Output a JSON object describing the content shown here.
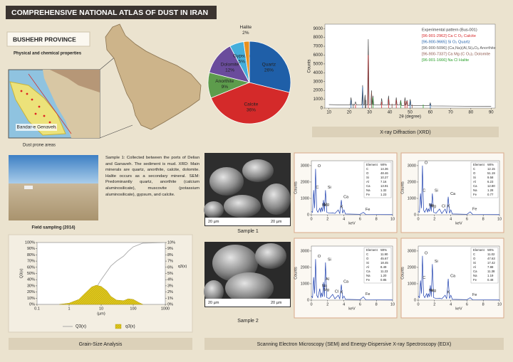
{
  "header": {
    "title": "COMPREHENSIVE NATIONAL ATLAS OF DUST IN IRAN"
  },
  "province": {
    "name": "BUSHEHR PROVINCE",
    "subtitle": "Physical and chemical properties"
  },
  "map": {
    "label": "Bandar-e Genaveh",
    "caption": "Dust prone areas"
  },
  "field": {
    "caption": "Field sampling (2014)"
  },
  "description": "Sample 1: Collected between the ports of Delian and Ganaveh. The sediment is mud. XRD: Main minerals are quartz, anorthite, calcite, dolomite. Halite occurs as a secondary mineral. SEM: Predominantly quartz, anorthite (calcium aluminosilicate), muscovite (potassium aluminosilicate), gypsum, and calcite.",
  "sem": {
    "samples": [
      "Sample 1",
      "Sample 2"
    ],
    "scale_bar": "20 µm"
  },
  "captions": {
    "xrd": "X-ray Diffraction (XRD)",
    "grain": "Grain-Size Analysis",
    "sem": "Scanning Electron Microscopy (SEM) and Energy-Dispersive X-ray Spectroscopy (EDX)"
  },
  "chart_data": [
    {
      "type": "pie",
      "categories": [
        "Quartz",
        "Calcite",
        "Anorthite",
        "Dolomite",
        "Gypsum",
        "Halite"
      ],
      "values": [
        26,
        36,
        9,
        12,
        5,
        2
      ],
      "value_labels": [
        "26%",
        "36%",
        "9%",
        "12%",
        "5%",
        "2%"
      ],
      "colors": [
        "#1f5fa8",
        "#d42a2a",
        "#5d9c4c",
        "#6a4c9c",
        "#45aedb",
        "#e8901e"
      ]
    },
    {
      "type": "line",
      "xlabel": "2θ (degree)",
      "ylabel": "Counts",
      "xlim": [
        8,
        92
      ],
      "ylim": [
        0,
        9500
      ],
      "xticks": [
        10,
        20,
        30,
        40,
        50,
        60,
        70,
        80,
        90
      ],
      "yticks": [
        0,
        1000,
        2000,
        3000,
        4000,
        5000,
        6000,
        7000,
        8000,
        9000
      ],
      "series": [
        {
          "name": "Experimental pattern (Bus-001)",
          "color": "#333333",
          "style": "line",
          "x": [
            10,
            20.5,
            20.9,
            21.3,
            22.6,
            23.1,
            23.6,
            26.2,
            26.6,
            27.0,
            27.4,
            27.8,
            28.2,
            29.0,
            29.4,
            29.8,
            30.6,
            31.0,
            31.4,
            31.7,
            32.1,
            35.6,
            36.0,
            36.4,
            39.0,
            39.4,
            39.8,
            42.8,
            43.2,
            43.6,
            45.0,
            45.4,
            45.8,
            47.1,
            47.5,
            47.9,
            48.5,
            48.9,
            49.7,
            50.1,
            50.5,
            59.6,
            60.0,
            60.4,
            90
          ],
          "values": [
            400,
            350,
            1200,
            350,
            350,
            700,
            350,
            350,
            2600,
            350,
            350,
            1500,
            350,
            350,
            7800,
            350,
            350,
            2000,
            350,
            1400,
            350,
            350,
            1100,
            350,
            350,
            1400,
            350,
            350,
            1200,
            350,
            350,
            900,
            300,
            300,
            1200,
            300,
            900,
            300,
            300,
            1000,
            300,
            300,
            600,
            250,
            200
          ]
        },
        {
          "name": "[96-901-2962] Ca C O₃ Calcite",
          "color": "#d62728",
          "style": "stem",
          "x": [
            23.1,
            29.4,
            36.0,
            39.4,
            43.2,
            47.5,
            48.5
          ],
          "values": [
            400,
            6000,
            700,
            1000,
            900,
            800,
            800
          ]
        },
        {
          "name": "[96-900-9665] Si O₂ Quartz",
          "color": "#1f5fa8",
          "style": "stem",
          "x": [
            20.9,
            26.6,
            50.1,
            60.0
          ],
          "values": [
            900,
            2400,
            800,
            500
          ]
        },
        {
          "name": "[96-900-5096] (Ca,Na)(Al,Si)₄O₈ Anorthite",
          "color": "#555555",
          "style": "stem",
          "x": [
            22.0,
            27.8,
            28.2
          ],
          "values": [
            500,
            1300,
            900
          ]
        },
        {
          "name": "[96-900-7337] Ca Mg (C O₃)₂ Dolomite",
          "color": "#8c564b",
          "style": "stem",
          "x": [
            31.0,
            41.1,
            51.0
          ],
          "values": [
            1800,
            500,
            400
          ]
        },
        {
          "name": "[96-901-1666] Na Cl Halite",
          "color": "#2ca02c",
          "style": "stem",
          "x": [
            31.7,
            45.4,
            56.5
          ],
          "values": [
            1200,
            800,
            400
          ]
        }
      ]
    },
    {
      "type": "line",
      "xscale": "log",
      "xlabel": "(µm)",
      "ylabel": "Q3(x)",
      "y2label": "q3(x)",
      "xlim": [
        0.1,
        1000
      ],
      "ylim": [
        0,
        100
      ],
      "y2lim": [
        0,
        10
      ],
      "xticks": [
        0.1,
        1,
        10,
        100,
        1000
      ],
      "yticks": [
        {
          "value": 0,
          "label": "0%"
        },
        {
          "value": 10,
          "label": "10%"
        },
        {
          "value": 20,
          "label": "20%"
        },
        {
          "value": 30,
          "label": "30%"
        },
        {
          "value": 40,
          "label": "40%"
        },
        {
          "value": 50,
          "label": "50%"
        },
        {
          "value": 60,
          "label": "60%"
        },
        {
          "value": 70,
          "label": "70%"
        },
        {
          "value": 80,
          "label": "80%"
        },
        {
          "value": 90,
          "label": "90%"
        },
        {
          "value": 100,
          "label": "100%"
        }
      ],
      "y2ticks": [
        {
          "value": 0,
          "label": "0%"
        },
        {
          "value": 1,
          "label": "1%"
        },
        {
          "value": 2,
          "label": "2%"
        },
        {
          "value": 3,
          "label": "3%"
        },
        {
          "value": 4,
          "label": "4%"
        },
        {
          "value": 5,
          "label": "5%"
        },
        {
          "value": 6,
          "label": "6%"
        },
        {
          "value": 7,
          "label": "7%"
        },
        {
          "value": 8,
          "label": "8%"
        },
        {
          "value": 9,
          "label": "9%"
        },
        {
          "value": 10,
          "label": "10%"
        }
      ],
      "series": [
        {
          "name": "Q3(x)",
          "color": "#a8a8a8",
          "style": "line",
          "x": [
            0.1,
            0.5,
            1,
            2,
            3,
            5,
            7,
            10,
            20,
            30,
            50,
            70,
            100,
            200,
            1000
          ],
          "values": [
            0,
            0,
            1,
            4,
            8,
            17,
            27,
            40,
            62,
            70,
            78,
            86,
            93,
            99,
            100
          ]
        },
        {
          "name": "q3(x)",
          "color": "#e0c81c",
          "style": "area",
          "axis": "y2",
          "x": [
            0.5,
            1,
            2,
            3,
            5,
            7,
            10,
            15,
            20,
            30,
            50,
            70,
            100,
            150,
            200
          ],
          "values": [
            0,
            0.2,
            0.8,
            1.7,
            2.8,
            3.1,
            2.9,
            2.2,
            1.3,
            0.7,
            0.6,
            0.9,
            0.8,
            0.3,
            0
          ]
        }
      ]
    },
    {
      "type": "line",
      "xlabel": "keV",
      "ylabel": "Counts",
      "color": "#1d3fae",
      "xlim": [
        0,
        10
      ],
      "ylim": [
        0,
        3300
      ],
      "xticks": [
        0,
        2,
        4,
        6,
        8,
        10
      ],
      "yticks": [
        0,
        1000,
        2000,
        3000
      ],
      "x": [
        0,
        0.15,
        0.28,
        0.4,
        0.52,
        0.65,
        0.8,
        1.04,
        1.15,
        1.25,
        1.37,
        1.49,
        1.6,
        1.74,
        1.9,
        2.2,
        2.62,
        2.9,
        3.31,
        3.5,
        3.69,
        3.85,
        4.01,
        4.2,
        6.0,
        6.4,
        6.7,
        10
      ],
      "values": [
        200,
        150,
        1500,
        400,
        2800,
        300,
        150,
        400,
        150,
        450,
        200,
        900,
        200,
        1500,
        150,
        100,
        120,
        80,
        300,
        80,
        900,
        100,
        300,
        50,
        30,
        150,
        20,
        10
      ],
      "peaks": [
        {
          "label": "C",
          "x": 0.28
        },
        {
          "label": "O",
          "x": 0.52
        },
        {
          "label": "Na",
          "x": 1.04
        },
        {
          "label": "Mg",
          "x": 1.25
        },
        {
          "label": "Si",
          "x": 1.74
        },
        {
          "label": "K",
          "x": 3.31
        },
        {
          "label": "Ca",
          "x": 3.69
        },
        {
          "label": "Fe",
          "x": 6.4
        }
      ],
      "table": {
        "header": [
          "Element",
          "Wt%"
        ],
        "rows": [
          [
            "C",
            "14.36"
          ],
          [
            "O",
            "48.46"
          ],
          [
            "Si",
            "10.27"
          ],
          [
            "Al",
            "7.16"
          ],
          [
            "Ca",
            "13.91"
          ],
          [
            "Na",
            "1.32"
          ],
          [
            "Fe",
            "1.23"
          ]
        ]
      }
    },
    {
      "type": "line",
      "xlabel": "keV",
      "ylabel": "Counts",
      "color": "#1d3fae",
      "xlim": [
        0,
        10
      ],
      "ylim": [
        0,
        3300
      ],
      "xticks": [
        0,
        2,
        4,
        6,
        8,
        10
      ],
      "yticks": [
        0,
        1000,
        2000,
        3000
      ],
      "x": [
        0,
        0.15,
        0.28,
        0.4,
        0.52,
        0.65,
        0.8,
        1.04,
        1.15,
        1.25,
        1.37,
        1.49,
        1.6,
        1.74,
        1.9,
        2.2,
        2.62,
        2.9,
        3.31,
        3.5,
        3.69,
        3.85,
        4.01,
        4.2,
        6.0,
        6.4,
        6.7,
        10
      ],
      "values": [
        200,
        150,
        1300,
        400,
        3000,
        300,
        150,
        400,
        150,
        350,
        200,
        700,
        200,
        1300,
        150,
        100,
        350,
        80,
        350,
        80,
        1100,
        100,
        300,
        50,
        30,
        180,
        20,
        10
      ],
      "peaks": [
        {
          "label": "C",
          "x": 0.28
        },
        {
          "label": "O",
          "x": 0.52
        },
        {
          "label": "Na",
          "x": 1.04
        },
        {
          "label": "Mg",
          "x": 1.25
        },
        {
          "label": "Si",
          "x": 1.74
        },
        {
          "label": "Cl",
          "x": 2.62
        },
        {
          "label": "K",
          "x": 3.31
        },
        {
          "label": "Ca",
          "x": 3.69
        },
        {
          "label": "Fe",
          "x": 6.4
        }
      ],
      "table": {
        "header": [
          "Element",
          "Wt%"
        ],
        "rows": [
          [
            "C",
            "12.15"
          ],
          [
            "O",
            "51.19"
          ],
          [
            "Si",
            "9.58"
          ],
          [
            "Al",
            "6.23"
          ],
          [
            "Ca",
            "12.80"
          ],
          [
            "Na",
            "1.28"
          ],
          [
            "Fe",
            "0.77"
          ]
        ]
      }
    },
    {
      "type": "line",
      "xlabel": "keV",
      "ylabel": "Counts",
      "color": "#1d3fae",
      "xlim": [
        0,
        10
      ],
      "ylim": [
        0,
        3300
      ],
      "xticks": [
        0,
        2,
        4,
        6,
        8,
        10
      ],
      "yticks": [
        0,
        1000,
        2000,
        3000
      ],
      "x": [
        0,
        0.15,
        0.28,
        0.4,
        0.52,
        0.65,
        0.8,
        1.04,
        1.15,
        1.25,
        1.37,
        1.49,
        1.6,
        1.74,
        1.9,
        2.2,
        2.62,
        2.9,
        3.31,
        3.5,
        3.69,
        3.85,
        4.01,
        4.2,
        6.0,
        6.4,
        6.7,
        10
      ],
      "values": [
        250,
        150,
        1400,
        400,
        2500,
        300,
        150,
        700,
        150,
        450,
        200,
        1100,
        200,
        2300,
        150,
        100,
        350,
        80,
        300,
        80,
        950,
        100,
        250,
        50,
        30,
        200,
        20,
        10
      ],
      "peaks": [
        {
          "label": "O",
          "x": 0.52
        },
        {
          "label": "Na",
          "x": 1.04
        },
        {
          "label": "Mg",
          "x": 1.25
        },
        {
          "label": "Al",
          "x": 1.49
        },
        {
          "label": "Si",
          "x": 1.74
        },
        {
          "label": "Cl",
          "x": 2.62
        },
        {
          "label": "K",
          "x": 3.31
        },
        {
          "label": "Ca",
          "x": 3.69
        },
        {
          "label": "Fe",
          "x": 6.4
        }
      ],
      "table": {
        "header": [
          "Element",
          "Wt%"
        ],
        "rows": [
          [
            "C",
            "11.90"
          ],
          [
            "O",
            "45.67"
          ],
          [
            "Si",
            "18.45"
          ],
          [
            "Al",
            "8.49"
          ],
          [
            "Ca",
            "11.23"
          ],
          [
            "Na",
            "1.20"
          ],
          [
            "Fe",
            "0.85"
          ]
        ]
      }
    },
    {
      "type": "line",
      "xlabel": "keV",
      "ylabel": "Counts",
      "color": "#1d3fae",
      "xlim": [
        0,
        10
      ],
      "ylim": [
        0,
        3300
      ],
      "xticks": [
        0,
        2,
        4,
        6,
        8,
        10
      ],
      "yticks": [
        0,
        1000,
        2000,
        3000
      ],
      "x": [
        0,
        0.15,
        0.28,
        0.4,
        0.52,
        0.65,
        0.8,
        1.04,
        1.15,
        1.25,
        1.37,
        1.49,
        1.6,
        1.74,
        1.9,
        2.2,
        2.62,
        2.9,
        3.31,
        3.5,
        3.69,
        3.85,
        4.01,
        4.2,
        6.0,
        6.4,
        6.7,
        10
      ],
      "values": [
        250,
        150,
        1200,
        400,
        2700,
        300,
        150,
        400,
        150,
        400,
        200,
        900,
        200,
        2200,
        150,
        100,
        120,
        80,
        300,
        80,
        1300,
        100,
        300,
        50,
        30,
        150,
        20,
        10
      ],
      "peaks": [
        {
          "label": "C",
          "x": 0.28
        },
        {
          "label": "O",
          "x": 0.52
        },
        {
          "label": "Na",
          "x": 1.04
        },
        {
          "label": "Mg",
          "x": 1.25
        },
        {
          "label": "Si",
          "x": 1.74
        },
        {
          "label": "K",
          "x": 3.31
        },
        {
          "label": "Ca",
          "x": 3.69
        },
        {
          "label": "Fe",
          "x": 6.4
        }
      ],
      "table": {
        "header": [
          "Element",
          "Wt%"
        ],
        "rows": [
          [
            "C",
            "11.02"
          ],
          [
            "O",
            "47.63"
          ],
          [
            "Si",
            "17.42"
          ],
          [
            "Al",
            "7.88"
          ],
          [
            "Ca",
            "11.38"
          ],
          [
            "Na",
            "1.19"
          ],
          [
            "Fe",
            "0.48"
          ]
        ]
      }
    }
  ]
}
